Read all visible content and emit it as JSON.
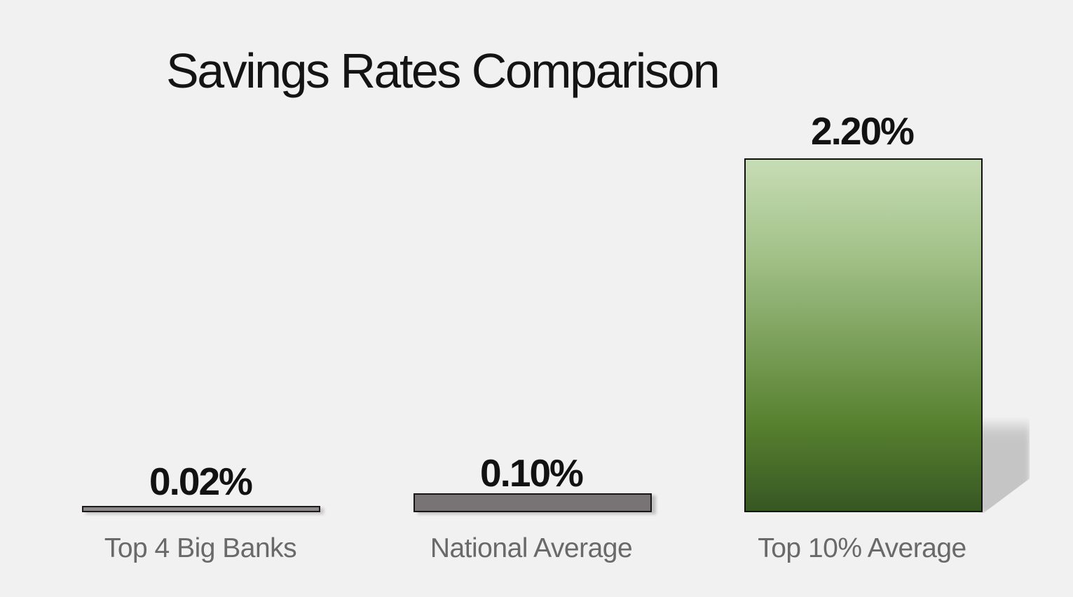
{
  "chart_data": {
    "type": "bar",
    "title": "Savings Rates Comparison",
    "categories": [
      "Top 4 Big Banks",
      "National Average",
      "Top 10% Average"
    ],
    "values": [
      0.02,
      0.1,
      2.2
    ],
    "value_labels": [
      "0.02%",
      "0.10%",
      "2.20%"
    ],
    "xlabel": "",
    "ylabel": "",
    "ylim": [
      0,
      2.2
    ],
    "grid": false,
    "legend": false,
    "axes_visible": false,
    "bar_styles": [
      {
        "fill": "#8e8a8b",
        "border": "#1b1b1b"
      },
      {
        "fill": "#787374",
        "border": "#161616"
      },
      {
        "gradient": [
          "#c7dcb5",
          "#a5c48c",
          "#7fa35f",
          "#57812f",
          "#375723"
        ],
        "border": "#101010",
        "shadow": "#c5c5c5"
      }
    ]
  },
  "colors": {
    "background": "#f1f1f2",
    "title_text": "#141414",
    "value_text": "#121212",
    "category_text": "#696969",
    "perspective_shadow": "#c5c5c5"
  }
}
